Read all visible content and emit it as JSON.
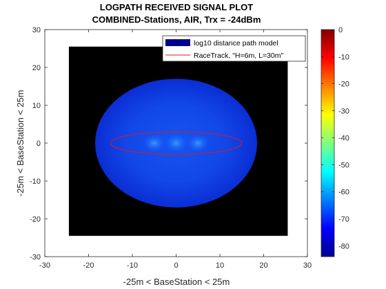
{
  "chart_data": {
    "type": "heatmap",
    "title": [
      "LOGPATH RECEIVED SIGNAL PLOT",
      "COMBINED-Stations, AIR, Trx = -24dBm"
    ],
    "xlabel": "-25m < BaseStation < 25m",
    "ylabel": "-25m < BaseStation < 25m",
    "xlim": [
      -30,
      30
    ],
    "ylim": [
      -30,
      30
    ],
    "xticks": [
      -30,
      -20,
      -10,
      0,
      10,
      20,
      30
    ],
    "yticks": [
      -30,
      -20,
      -10,
      0,
      10,
      20,
      30
    ],
    "image_extent": {
      "x": [
        -24.5,
        25.5
      ],
      "y": [
        -24.5,
        25.5
      ]
    },
    "signal_region": {
      "center": [
        0,
        0
      ],
      "rx": 18.5,
      "ry": 17
    },
    "stations": [
      {
        "x": -5,
        "y": 0
      },
      {
        "x": 0,
        "y": 0
      },
      {
        "x": 5,
        "y": 0
      }
    ],
    "racetrack": {
      "name": "RaceTrack, \"H=6m, L=30m\"",
      "center": [
        0,
        0
      ],
      "length": 30,
      "height": 6,
      "color": "#e0191b"
    },
    "colorbar": {
      "min": -84,
      "max": 0,
      "ticks": [
        0,
        -10,
        -20,
        -30,
        -40,
        -50,
        -60,
        -70,
        -80
      ],
      "colormap": "jet"
    },
    "legend": {
      "location": "top-right",
      "entries": [
        {
          "label": "log10 distance path model",
          "color": "#00008f"
        },
        {
          "label": "RaceTrack, \"H=6m, L=30m\"",
          "color": "#e0191b"
        }
      ]
    }
  }
}
